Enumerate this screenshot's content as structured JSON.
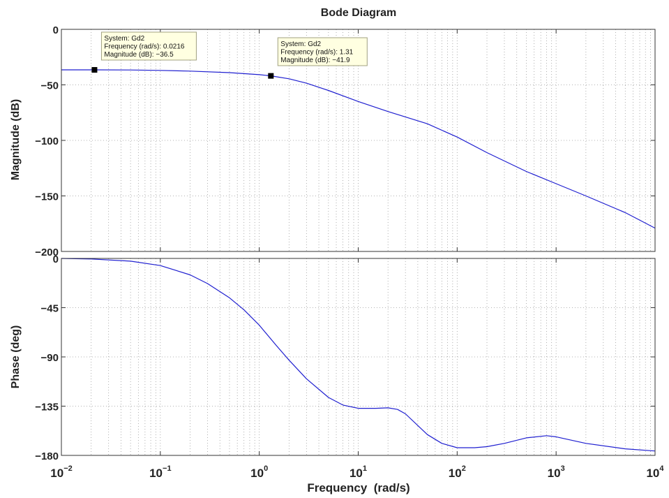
{
  "chart_data": {
    "type": "line",
    "title": "Bode Diagram",
    "xlabel": "Frequency  (rad/s)",
    "x_scale": "log",
    "xlim": [
      0.01,
      10000
    ],
    "x_ticks": [
      {
        "base": "10",
        "exp": "−2"
      },
      {
        "base": "10",
        "exp": "−1"
      },
      {
        "base": "10",
        "exp": "0"
      },
      {
        "base": "10",
        "exp": "1"
      },
      {
        "base": "10",
        "exp": "2"
      },
      {
        "base": "10",
        "exp": "3"
      },
      {
        "base": "10",
        "exp": "4"
      }
    ],
    "grid": true,
    "line_color": "#1f1fd0",
    "magnitude": {
      "ylabel": "Magnitude (dB)",
      "ylim": [
        -200,
        0
      ],
      "y_ticks": [
        "0",
        "−50",
        "−100",
        "−150",
        "−200"
      ],
      "x": [
        0.01,
        0.0216,
        0.05,
        0.1,
        0.2,
        0.5,
        1,
        1.31,
        2,
        3,
        5,
        10,
        20,
        50,
        100,
        200,
        500,
        1000,
        2000,
        5000,
        10000
      ],
      "y": [
        -36.5,
        -36.5,
        -36.6,
        -37,
        -37.6,
        -39,
        -40.8,
        -41.9,
        -44.5,
        -48.5,
        -55,
        -65,
        -74,
        -85,
        -97,
        -111,
        -128,
        -139,
        -150,
        -165,
        -179
      ]
    },
    "phase": {
      "ylabel": "Phase (deg)",
      "ylim": [
        -182,
        -2
      ],
      "y_ticks": [
        "0",
        "−45",
        "−90",
        "−135",
        "−180"
      ],
      "x": [
        0.01,
        0.02,
        0.05,
        0.1,
        0.2,
        0.3,
        0.5,
        0.7,
        1,
        1.5,
        2,
        3,
        5,
        7,
        10,
        15,
        20,
        25,
        30,
        50,
        70,
        100,
        150,
        200,
        300,
        500,
        800,
        1000,
        2000,
        5000,
        10000
      ],
      "y": [
        -2,
        -2.5,
        -4.5,
        -8.5,
        -17,
        -25,
        -38,
        -49,
        -63,
        -82,
        -95,
        -112,
        -129,
        -136,
        -139,
        -139,
        -138.5,
        -140,
        -144,
        -163,
        -171,
        -175,
        -175,
        -174,
        -171,
        -166,
        -164,
        -165,
        -171,
        -176,
        -178
      ]
    },
    "datatips": [
      {
        "panel": "magnitude",
        "point": {
          "x": 0.0216,
          "y": -36.5
        },
        "lines": [
          "System: Gd2",
          "Frequency (rad/s): 0.0216",
          "Magnitude (dB): −36.5"
        ]
      },
      {
        "panel": "magnitude",
        "point": {
          "x": 1.31,
          "y": -41.9
        },
        "lines": [
          "System: Gd2",
          "Frequency (rad/s): 1.31",
          "Magnitude (dB): −41.9"
        ]
      }
    ]
  }
}
